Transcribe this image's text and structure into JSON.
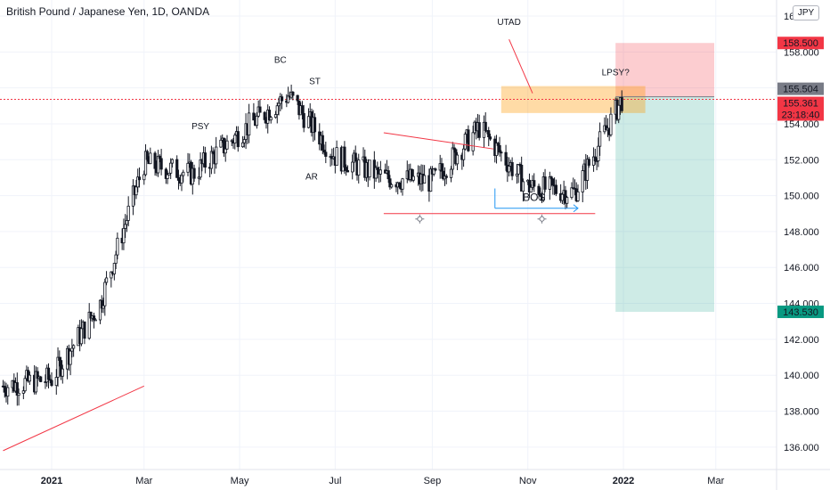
{
  "header": {
    "title": "British Pound / Japanese Yen, 1D, OANDA",
    "currency": "JPY"
  },
  "colors": {
    "candle": "#131722",
    "grid": "#f0f3fa",
    "trend_line": "#f23645",
    "bos_line": "#2196f3",
    "stop_zone": "rgba(242,54,69,0.25)",
    "target_zone": "rgba(8,153,129,0.2)",
    "supply_zone": "rgba(255,152,0,0.35)",
    "badge_red": "#f23645",
    "badge_green": "#089981",
    "badge_grey": "#787b86"
  },
  "chart_data": {
    "type": "candlestick",
    "title": "British Pound / Japanese Yen, 1D, OANDA",
    "x_tick_labels": [
      "2021",
      "Mar",
      "May",
      "Jul",
      "Sep",
      "Nov",
      "2022",
      "Mar"
    ],
    "y_tick_labels": [
      "136.000",
      "138.000",
      "140.000",
      "142.000",
      "144.000",
      "146.000",
      "148.000",
      "150.000",
      "152.000",
      "154.000",
      "156.000",
      "158.000",
      "160.000"
    ],
    "ylim": [
      134.8,
      161.2
    ],
    "grid": true,
    "series": [
      {
        "name": "GBPJPY",
        "x": [
          "2020-12-01",
          "2021-01-01",
          "2021-02-01",
          "2021-03-01",
          "2021-04-01",
          "2021-05-01",
          "2021-06-01",
          "2021-07-01",
          "2021-08-01",
          "2021-09-01",
          "2021-10-01",
          "2021-11-01",
          "2021-12-01",
          "2021-12-31"
        ],
        "close": [
          139.4,
          139.8,
          144.0,
          151.8,
          151.2,
          153.5,
          155.6,
          152.2,
          151.0,
          150.8,
          153.8,
          150.5,
          150.2,
          155.36
        ]
      }
    ],
    "annotations": {
      "labels": [
        {
          "text": "PSY",
          "date": "2021-04-06",
          "price": 153.7
        },
        {
          "text": "BC",
          "date": "2021-05-27",
          "price": 157.4
        },
        {
          "text": "ST",
          "date": "2021-06-18",
          "price": 156.2
        },
        {
          "text": "AR",
          "date": "2021-06-16",
          "price": 150.9
        },
        {
          "text": "UTAD",
          "date": "2021-10-20",
          "price": 159.5
        },
        {
          "text": "LPSY?",
          "date": "2021-12-27",
          "price": 156.7
        },
        {
          "text": "BOS",
          "date": "2021-11-05",
          "price": 149.7
        }
      ],
      "current_price": "155.361",
      "countdown": "23:18:40",
      "entry_price": "155.504",
      "stop_price": "158.500",
      "target_price": "143.530"
    }
  }
}
